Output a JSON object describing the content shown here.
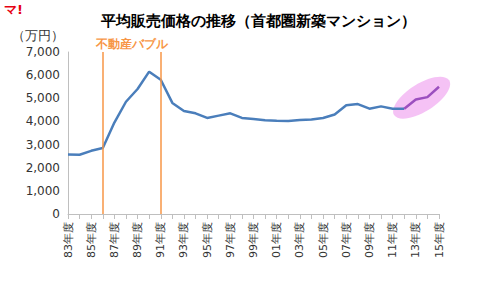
{
  "chart_data": {
    "type": "line",
    "title": "平均販売価格の推移（首都圏新築マンション）",
    "logo": "マ!",
    "y_label": "（万円）",
    "categories": [
      "83年度",
      null,
      "85年度",
      null,
      "87年度",
      null,
      "89年度",
      null,
      "91年度",
      null,
      "93年度",
      null,
      "95年度",
      null,
      "97年度",
      null,
      "99年度",
      null,
      "01年度",
      null,
      "03年度",
      null,
      "05年度",
      null,
      "07年度",
      null,
      "09年度",
      null,
      "11年度",
      null,
      "13年度",
      null,
      "15年度"
    ],
    "series": [
      {
        "color": "#4a7ebb",
        "values": [
          2570,
          2560,
          2730,
          2850,
          3950,
          4850,
          5400,
          6150,
          5800,
          4800,
          4450,
          4350,
          4150,
          4250,
          4350,
          4150,
          4100,
          4050,
          4030,
          4020,
          4060,
          4080,
          4150,
          4300,
          4700,
          4750,
          4550,
          4650,
          4550,
          4550,
          null,
          null,
          null
        ]
      },
      {
        "color": "#9b4fbf",
        "values": [
          null,
          null,
          null,
          null,
          null,
          null,
          null,
          null,
          null,
          null,
          null,
          null,
          null,
          null,
          null,
          null,
          null,
          null,
          null,
          null,
          null,
          null,
          null,
          null,
          null,
          null,
          null,
          null,
          null,
          4550,
          4950,
          5050,
          5500
        ]
      }
    ],
    "ylim": [
      0,
      7000
    ],
    "yticks": [
      0,
      {
        "value": 1000,
        "label": "1,000"
      },
      {
        "value": 2000,
        "label": "2,000"
      },
      {
        "value": 3000,
        "label": "3,000"
      },
      {
        "value": 4000,
        "label": "4,000"
      },
      {
        "value": 5000,
        "label": "5,000"
      },
      {
        "value": 6000,
        "label": "6,000"
      },
      {
        "value": 7000,
        "label": "7,000"
      }
    ],
    "grid": false,
    "annotations": [
      {
        "text": "不動産バブル",
        "x_range": [
          3,
          8
        ],
        "color": "#f79646"
      }
    ]
  }
}
